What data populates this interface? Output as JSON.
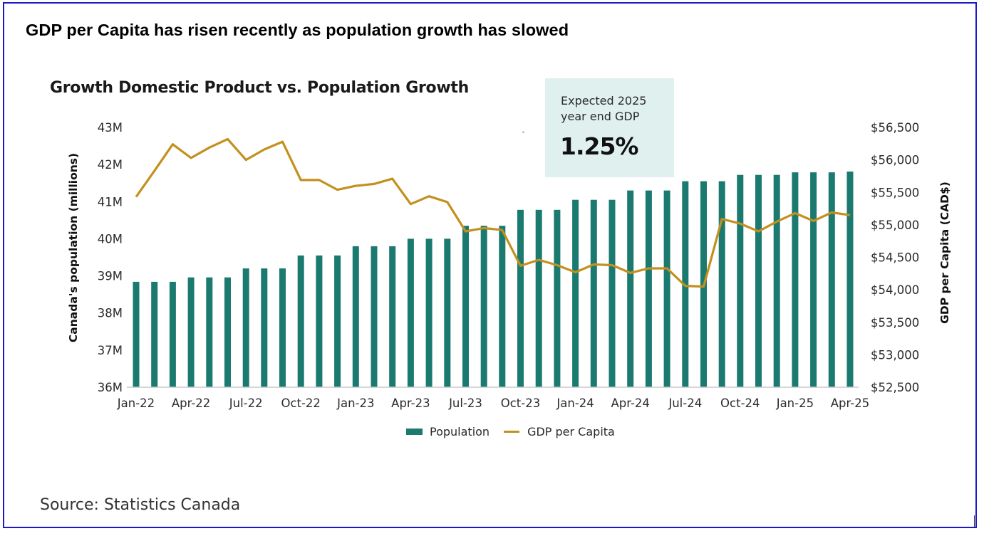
{
  "headline": "GDP per Capita has risen recently as population growth has slowed",
  "callout": {
    "line1": "Expected 2025",
    "line2": "year end GDP",
    "value": "1.25%"
  },
  "source": "Source: Statistics Canada",
  "colors": {
    "population": "#1b7a70",
    "gdp": "#c3901e",
    "callout_bg": "#dff0ef",
    "frame": "#1a1acc"
  },
  "chart_data": {
    "type": "bar",
    "title": "Growth Domestic Product vs. Population Growth",
    "xlabel": "",
    "ylabel": "Canada's population (millions)",
    "y2label": "GDP per Capita (CAD$)",
    "ylim": [
      36,
      43
    ],
    "y2lim": [
      52500,
      56500
    ],
    "grid": false,
    "legend_position": "bottom-center",
    "yticks": [
      "36M",
      "37M",
      "38M",
      "39M",
      "40M",
      "41M",
      "42M",
      "43M"
    ],
    "y2ticks": [
      "$52,500",
      "$53,000",
      "$53,500",
      "$54,000",
      "$54,500",
      "$55,000",
      "$55,500",
      "$56,000",
      "$56,500"
    ],
    "xtick_labels": [
      "Jan-22",
      "Apr-22",
      "Jul-22",
      "Oct-22",
      "Jan-23",
      "Apr-23",
      "Jul-23",
      "Oct-23",
      "Jan-24",
      "Apr-24",
      "Jul-24",
      "Oct-24",
      "Jan-25",
      "Apr-25"
    ],
    "categories": [
      "Jan-22",
      "Feb-22",
      "Mar-22",
      "Apr-22",
      "May-22",
      "Jun-22",
      "Jul-22",
      "Aug-22",
      "Sep-22",
      "Oct-22",
      "Nov-22",
      "Dec-22",
      "Jan-23",
      "Feb-23",
      "Mar-23",
      "Apr-23",
      "May-23",
      "Jun-23",
      "Jul-23",
      "Aug-23",
      "Sep-23",
      "Oct-23",
      "Nov-23",
      "Dec-23",
      "Jan-24",
      "Feb-24",
      "Mar-24",
      "Apr-24",
      "May-24",
      "Jun-24",
      "Jul-24",
      "Aug-24",
      "Sep-24",
      "Oct-24",
      "Nov-24",
      "Dec-24",
      "Jan-25",
      "Feb-25",
      "Mar-25",
      "Apr-25"
    ],
    "series": [
      {
        "name": "Population",
        "type": "bar",
        "axis": "left",
        "unit": "millions",
        "values": [
          38.84,
          38.84,
          38.84,
          38.96,
          38.96,
          38.96,
          39.2,
          39.2,
          39.2,
          39.55,
          39.55,
          39.55,
          39.8,
          39.8,
          39.8,
          40.0,
          40.0,
          40.0,
          40.35,
          40.35,
          40.35,
          40.78,
          40.78,
          40.78,
          41.05,
          41.05,
          41.05,
          41.3,
          41.3,
          41.3,
          41.55,
          41.55,
          41.55,
          41.72,
          41.72,
          41.72,
          41.79,
          41.79,
          41.79,
          41.81
        ]
      },
      {
        "name": "GDP per Capita",
        "type": "line",
        "axis": "right",
        "unit": "CAD$",
        "values": [
          55430,
          55830,
          56240,
          56030,
          56190,
          56320,
          56000,
          56160,
          56280,
          55690,
          55690,
          55540,
          55600,
          55630,
          55710,
          55320,
          55440,
          55350,
          54900,
          54950,
          54920,
          54370,
          54460,
          54380,
          54270,
          54390,
          54380,
          54260,
          54330,
          54330,
          54060,
          54050,
          55090,
          55020,
          54900,
          55050,
          55180,
          55060,
          55190,
          55150
        ]
      }
    ]
  }
}
